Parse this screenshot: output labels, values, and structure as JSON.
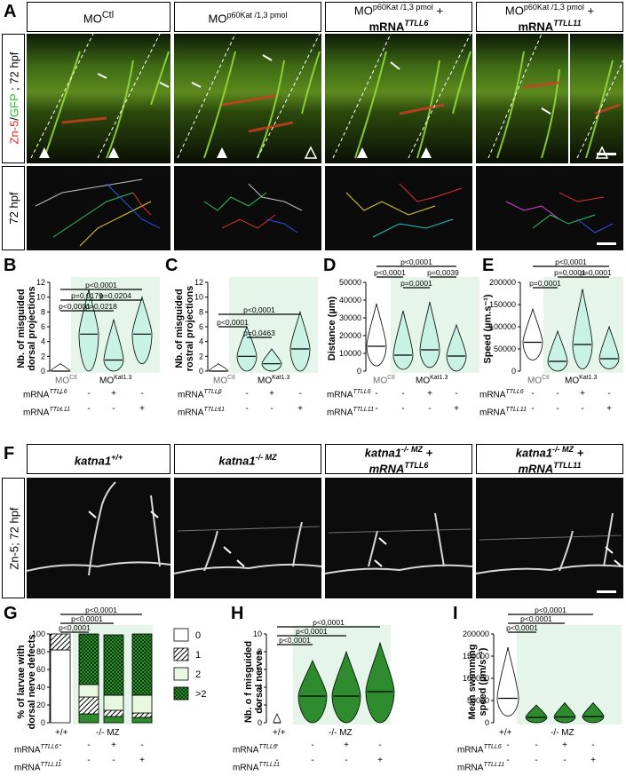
{
  "panelA": {
    "label": "A",
    "side_label_top_red": "Zn-5",
    "side_label_top_sep": "/",
    "side_label_top_green": "GFP",
    "side_label_top_rest": " ; 72 hpf",
    "side_label_bottom": "72 hpf",
    "headers": [
      {
        "main": "MO",
        "sup": "Ctl",
        "line2": ""
      },
      {
        "main": "MO",
        "sup": "p60Kat /1,3 pmol",
        "line2": ""
      },
      {
        "main": "MO",
        "sup": "p60Kat /1,3 pmol",
        "plus": " +",
        "line2": "mRNA",
        "line2sup": "TTLL6"
      },
      {
        "main": "MO",
        "sup": "p60Kat /1,3 pmol",
        "plus": " +",
        "line2": "mRNA",
        "line2sup": "TTLL11"
      }
    ]
  },
  "panelB": {
    "label": "B",
    "ylabel_l1": "Nb. of misguided",
    "ylabel_l2": "dorsal projections",
    "yticks": [
      "0",
      "2",
      "4",
      "6",
      "8",
      "10",
      "12"
    ],
    "pvals": [
      "p<0,0001",
      "p=0,0179",
      "p=0,0204",
      "p<0,0001",
      "p=0,0218"
    ],
    "groupA": "MO",
    "groupAsup": "Ctl",
    "groupB": "MO",
    "groupBsup": "Kat1.3"
  },
  "panelC": {
    "label": "C",
    "ylabel_l1": "Nb. of misguided",
    "ylabel_l2": "rostral projections",
    "yticks": [
      "0",
      "2",
      "4",
      "6",
      "8",
      "10",
      "12"
    ],
    "pvals": [
      "p<0,0001",
      "p<0,0001",
      "p=0,0463"
    ],
    "groupA": "MO",
    "groupAsup": "Ctl",
    "groupB": "MO",
    "groupBsup": "Kat1.3"
  },
  "panelD": {
    "label": "D",
    "ylabel": "Distance (µm)",
    "yticks": [
      "0",
      "10000",
      "20000",
      "30000",
      "40000",
      "50000"
    ],
    "pvals": [
      "p<0,0001",
      "p<0,0001",
      "p=0,0039",
      "p=0,0001"
    ],
    "groupA": "MO",
    "groupAsup": "Ctl",
    "groupB": "MO",
    "groupBsup": "Kat1.3"
  },
  "panelE": {
    "label": "E",
    "ylabel": "Speed (µm.s⁻¹)",
    "yticks": [
      "0",
      "50000",
      "100000",
      "150000",
      "200000"
    ],
    "pvals": [
      "p<0,0001",
      "p=0,0001",
      "p=0,0001",
      "p=0,0001"
    ],
    "groupA": "MO",
    "groupAsup": "Ctl",
    "groupB": "MO",
    "groupBsup": "Kat1.3"
  },
  "mrna_rows": {
    "r1": "mRNA",
    "r1sup": "TTLL6",
    "r2": "mRNA",
    "r2sup": "TTLL11",
    "minus": "-",
    "plus": "+"
  },
  "panelF": {
    "label": "F",
    "side_label": "Zn-5; 72 hpf",
    "headers": [
      {
        "main": "katna1",
        "sup": "+/+",
        "line2": ""
      },
      {
        "main": "katna1",
        "sup": "-/- MZ",
        "line2": ""
      },
      {
        "main": "katna1",
        "sup": "-/- MZ",
        "plus": " +",
        "line2": "mRNA",
        "line2sup": "TTLL6"
      },
      {
        "main": "katna1",
        "sup": "-/- MZ",
        "plus": " +",
        "line2": "mRNA",
        "line2sup": "TTLL11"
      }
    ]
  },
  "panelG": {
    "label": "G",
    "ylabel_l1": "% of larvae with",
    "ylabel_l2": "dorsal nerve defects",
    "yticks": [
      "0",
      "20",
      "40",
      "60",
      "80",
      "100"
    ],
    "pvals": [
      "p<0,0001",
      "p<0,0001",
      "p<0,0001"
    ],
    "legend": [
      "0",
      "1",
      "2",
      ">2"
    ],
    "xa": "+/+",
    "xb": "-/- MZ"
  },
  "panelH": {
    "label": "H",
    "ylabel_l1": "Nb. o f misguided",
    "ylabel_l2": "dorsal nerves",
    "yticks": [
      "0",
      "2",
      "4",
      "6",
      "8",
      "10"
    ],
    "pvals": [
      "p<0,0001",
      "p<0,0001",
      "p<0,0001"
    ],
    "xa": "+/+",
    "xb": "-/- MZ"
  },
  "panelI": {
    "label": "I",
    "ylabel_l1": "Mean swimming",
    "ylabel_l2": "speed (µm/s⁻¹)",
    "yticks": [
      "0",
      "50000",
      "100000",
      "150000",
      "200000"
    ],
    "pvals": [
      "p<0,0001",
      "p<0,0001",
      "p<0,0001"
    ],
    "xa": "+/+",
    "xb": "-/- MZ"
  },
  "colors": {
    "violin_light": "#c8f2e4",
    "violin_dark": "#2e8b2e",
    "bg_light": "#e6f5ea",
    "green_text": "#22c322",
    "red_text": "#e02020"
  },
  "chart_data": [
    {
      "type": "violin",
      "panel": "B",
      "ylim": [
        0,
        12
      ],
      "categories": [
        "MOCtl",
        "MOKat1.3",
        "MOKat1.3 + mRNA TTLL6",
        "MOKat1.3 + mRNA TTLL11"
      ],
      "medians": [
        0,
        5,
        1.5,
        5
      ]
    },
    {
      "type": "violin",
      "panel": "C",
      "ylim": [
        0,
        12
      ],
      "categories": [
        "MOCtl",
        "MOKat1.3",
        "MOKat1.3 + mRNA TTLL6",
        "MOKat1.3 + mRNA TTLL11"
      ],
      "medians": [
        0,
        2,
        1,
        3
      ]
    },
    {
      "type": "violin",
      "panel": "D",
      "ylim": [
        0,
        50000
      ],
      "categories": [
        "MOCtl",
        "MOKat1.3",
        "MOKat1.3 + mRNA TTLL6",
        "MOKat1.3 + mRNA TTLL11"
      ],
      "medians": [
        14000,
        9000,
        12000,
        8500
      ]
    },
    {
      "type": "violin",
      "panel": "E",
      "ylim": [
        0,
        200000
      ],
      "categories": [
        "MOCtl",
        "MOKat1.3",
        "MOKat1.3 + mRNA TTLL6",
        "MOKat1.3 + mRNA TTLL11"
      ],
      "medians": [
        65000,
        22000,
        60000,
        28000
      ]
    },
    {
      "type": "bar",
      "panel": "G",
      "ylim": [
        0,
        100
      ],
      "stacked": true,
      "categories": [
        "+/+",
        "-/- MZ",
        "-/- MZ + TTLL6",
        "-/- MZ + TTLL11"
      ],
      "series": [
        {
          "name": "0",
          "values": [
            82,
            10,
            7,
            6
          ]
        },
        {
          "name": "1",
          "values": [
            18,
            19,
            7,
            5
          ]
        },
        {
          "name": "2",
          "values": [
            0,
            14,
            17,
            20
          ]
        },
        {
          "name": ">2",
          "values": [
            0,
            57,
            68,
            69
          ]
        }
      ]
    },
    {
      "type": "violin",
      "panel": "H",
      "ylim": [
        0,
        10
      ],
      "categories": [
        "+/+",
        "-/- MZ",
        "-/- MZ + TTLL6",
        "-/- MZ + TTLL11"
      ],
      "medians": [
        0,
        3,
        3,
        3.5
      ]
    },
    {
      "type": "violin",
      "panel": "I",
      "ylim": [
        0,
        200000
      ],
      "categories": [
        "+/+",
        "-/- MZ",
        "-/- MZ + TTLL6",
        "-/- MZ + TTLL11"
      ],
      "medians": [
        55000,
        12000,
        13000,
        14000
      ]
    }
  ]
}
